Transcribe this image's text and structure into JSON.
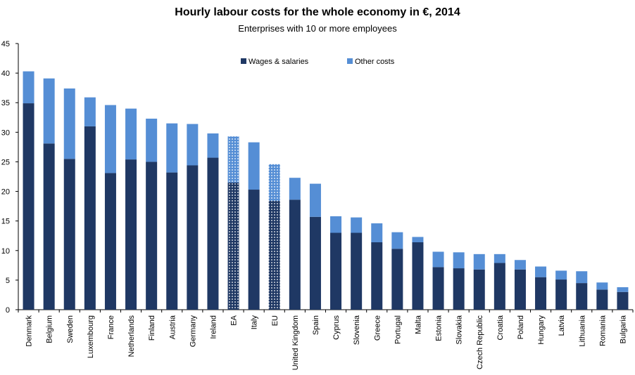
{
  "chart_data": {
    "type": "bar",
    "stacked": true,
    "title": "Hourly labour costs for the whole economy in €, 2014",
    "subtitle": "Enterprises with 10 or more employees",
    "xlabel": "",
    "ylabel": "",
    "ylim": [
      0,
      45
    ],
    "yticks": [
      0,
      5,
      10,
      15,
      20,
      25,
      30,
      35,
      40,
      45
    ],
    "grid": false,
    "legend_position": "top-center",
    "categories": [
      "Denmark",
      "Belgium",
      "Sweden",
      "Luxembourg",
      "France",
      "Netherlands",
      "Finland",
      "Austria",
      "Germany",
      "Ireland",
      "EA",
      "Italy",
      "EU",
      "United Kingdom",
      "Spain",
      "Cyprus",
      "Slovenia",
      "Greece",
      "Portugal",
      "Malta",
      "Estonia",
      "Slovakia",
      "Czech Republic",
      "Croatia",
      "Poland",
      "Hungary",
      "Latvia",
      "Lithuania",
      "Romania",
      "Bulgaria"
    ],
    "highlighted_categories": [
      "EA",
      "EU"
    ],
    "series": [
      {
        "name": "Wages & salaries",
        "color": "#1f3864",
        "values": [
          34.9,
          28.1,
          25.5,
          31.0,
          23.1,
          25.4,
          25.0,
          23.2,
          24.4,
          25.7,
          21.5,
          20.3,
          18.4,
          18.6,
          15.7,
          13.0,
          13.0,
          11.4,
          10.3,
          11.4,
          7.2,
          7.0,
          6.8,
          7.9,
          6.8,
          5.5,
          5.1,
          4.5,
          3.4,
          3.0
        ]
      },
      {
        "name": "Other costs",
        "color": "#558ed5",
        "values": [
          5.4,
          11.0,
          11.9,
          4.9,
          11.5,
          8.6,
          7.3,
          8.3,
          7.0,
          4.1,
          7.8,
          8.0,
          6.2,
          3.7,
          5.6,
          2.8,
          2.6,
          3.2,
          2.8,
          0.9,
          2.6,
          2.7,
          2.6,
          1.5,
          1.6,
          1.8,
          1.5,
          2.0,
          1.2,
          0.8
        ]
      }
    ]
  }
}
